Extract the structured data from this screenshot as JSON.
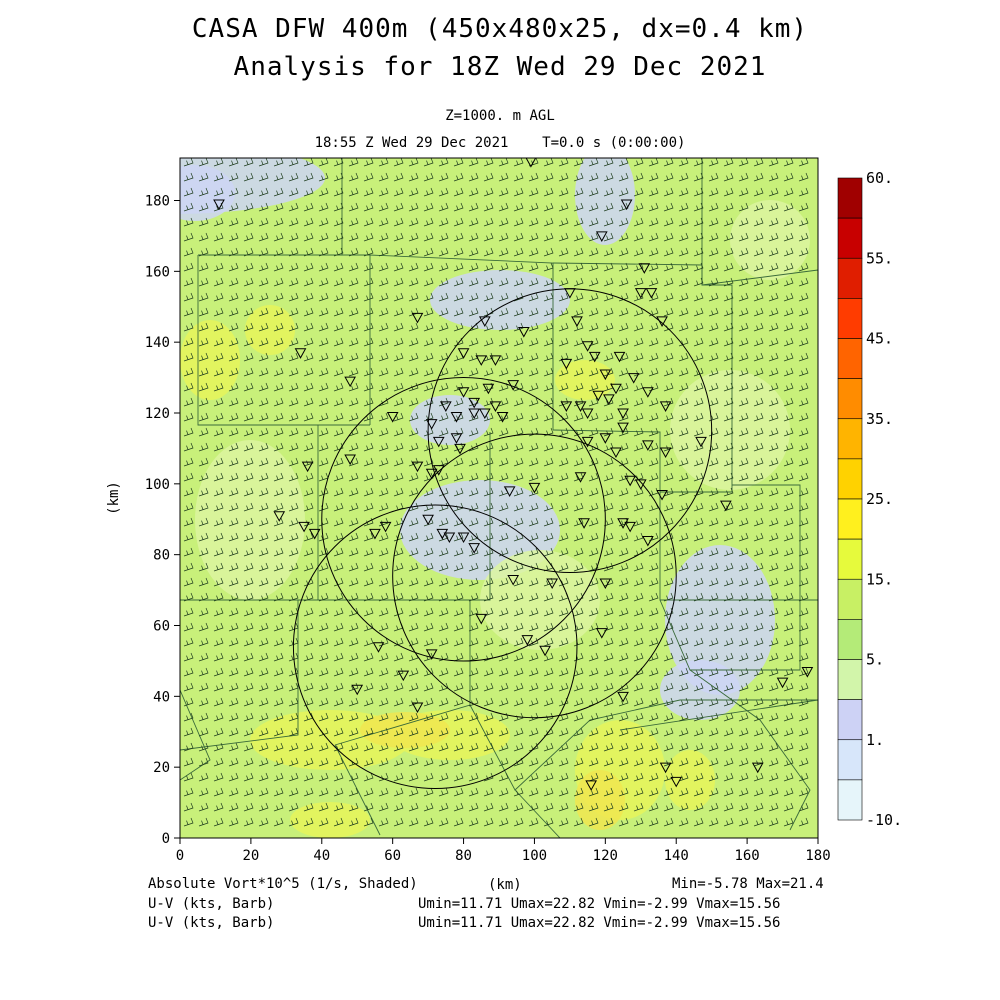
{
  "title_line1": "CASA DFW 400m (450x480x25, dx=0.4 km)",
  "title_line2": "Analysis for 18Z Wed 29 Dec 2021",
  "level_label": "Z=1000. m AGL",
  "time_label": "18:55 Z Wed 29 Dec 2021    T=0.0 s (0:00:00)",
  "footer": {
    "field_label": "Absolute Vort*10^5 (1/s, Shaded)",
    "axis_unit": "(km)",
    "minmax": "Min=-5.78 Max=21.4",
    "barb_label_1": "U-V (kts, Barb)",
    "barb_stats_1": "Umin=11.71 Umax=22.82 Vmin=-2.99 Vmax=15.56",
    "barb_label_2": "U-V (kts, Barb)",
    "barb_stats_2": "Umin=11.71 Umax=22.82 Vmin=-2.99 Vmax=15.56"
  },
  "colors": {
    "field_green": "#c8f07a",
    "field_light_green": "#dcf5a0",
    "field_yellow": "#e6f55a",
    "field_lavender": "#cdd5f5",
    "field_orange_yellow": "#f0e650"
  },
  "chart_data": {
    "type": "heatmap",
    "title": "CASA DFW 400m (450x480x25, dx=0.4 km)",
    "subtitle": "Analysis for 18Z Wed 29 Dec 2021",
    "xlabel": "(km)",
    "ylabel": "(km)",
    "xlim": [
      0,
      180
    ],
    "ylim": [
      0,
      192
    ],
    "x_ticks": [
      0,
      20,
      40,
      60,
      80,
      100,
      120,
      140,
      160,
      180
    ],
    "y_ticks": [
      0,
      20,
      40,
      60,
      80,
      100,
      120,
      140,
      160,
      180
    ],
    "colorbar": {
      "labels": [
        "60.",
        "55.",
        "45.",
        "35.",
        "25.",
        "15.",
        "5.",
        "1.",
        "-10."
      ],
      "colors": [
        "#a00000",
        "#c80000",
        "#e01e00",
        "#ff3c00",
        "#ff6400",
        "#ff8c00",
        "#ffb400",
        "#ffd200",
        "#fff01e",
        "#e6fa3c",
        "#c8f064",
        "#b4eb78",
        "#d2f5aa",
        "#cdd2f5",
        "#d7e6fa",
        "#e6f5fa"
      ]
    },
    "field_min": -5.78,
    "field_max": 21.4,
    "wind_u_range": [
      11.71,
      22.82
    ],
    "wind_v_range": [
      -2.99,
      15.56
    ],
    "radar_rings_km": [
      {
        "cx": 72,
        "cy": 54,
        "r": 40
      },
      {
        "cx": 100,
        "cy": 74,
        "r": 40
      },
      {
        "cx": 80,
        "cy": 90,
        "r": 40
      },
      {
        "cx": 110,
        "cy": 115,
        "r": 40
      }
    ],
    "stations_km": [
      [
        11,
        179
      ],
      [
        99,
        191
      ],
      [
        126,
        179
      ],
      [
        119,
        170
      ],
      [
        131,
        161
      ],
      [
        110,
        154
      ],
      [
        112,
        146
      ],
      [
        130,
        154
      ],
      [
        133,
        154
      ],
      [
        67,
        147
      ],
      [
        86,
        146
      ],
      [
        97,
        143
      ],
      [
        115,
        139
      ],
      [
        117,
        136
      ],
      [
        124,
        136
      ],
      [
        136,
        146
      ],
      [
        34,
        137
      ],
      [
        48,
        129
      ],
      [
        80,
        137
      ],
      [
        85,
        135
      ],
      [
        89,
        135
      ],
      [
        80,
        126
      ],
      [
        83,
        123
      ],
      [
        87,
        127
      ],
      [
        94,
        128
      ],
      [
        109,
        134
      ],
      [
        120,
        131
      ],
      [
        123,
        127
      ],
      [
        128,
        130
      ],
      [
        132,
        126
      ],
      [
        75,
        122
      ],
      [
        78,
        119
      ],
      [
        83,
        120
      ],
      [
        86,
        120
      ],
      [
        89,
        122
      ],
      [
        91,
        119
      ],
      [
        109,
        122
      ],
      [
        113,
        122
      ],
      [
        118,
        125
      ],
      [
        121,
        124
      ],
      [
        115,
        120
      ],
      [
        125,
        120
      ],
      [
        125,
        116
      ],
      [
        137,
        122
      ],
      [
        71,
        117
      ],
      [
        73,
        112
      ],
      [
        78,
        113
      ],
      [
        79,
        110
      ],
      [
        60,
        119
      ],
      [
        115,
        112
      ],
      [
        120,
        113
      ],
      [
        123,
        109
      ],
      [
        132,
        111
      ],
      [
        137,
        109
      ],
      [
        147,
        112
      ],
      [
        48,
        107
      ],
      [
        36,
        105
      ],
      [
        67,
        105
      ],
      [
        71,
        103
      ],
      [
        73,
        104
      ],
      [
        93,
        98
      ],
      [
        100,
        99
      ],
      [
        113,
        102
      ],
      [
        127,
        101
      ],
      [
        130,
        100
      ],
      [
        136,
        97
      ],
      [
        28,
        91
      ],
      [
        35,
        88
      ],
      [
        38,
        86
      ],
      [
        55,
        86
      ],
      [
        58,
        88
      ],
      [
        70,
        90
      ],
      [
        74,
        86
      ],
      [
        76,
        85
      ],
      [
        80,
        85
      ],
      [
        83,
        82
      ],
      [
        114,
        89
      ],
      [
        125,
        89
      ],
      [
        127,
        88
      ],
      [
        132,
        84
      ],
      [
        154,
        94
      ],
      [
        94,
        73
      ],
      [
        105,
        72
      ],
      [
        120,
        72
      ],
      [
        85,
        62
      ],
      [
        98,
        56
      ],
      [
        119,
        58
      ],
      [
        56,
        54
      ],
      [
        71,
        52
      ],
      [
        103,
        53
      ],
      [
        125,
        40
      ],
      [
        67,
        37
      ],
      [
        50,
        42
      ],
      [
        63,
        46
      ],
      [
        140,
        16
      ],
      [
        116,
        15
      ],
      [
        137,
        20
      ],
      [
        163,
        20
      ],
      [
        170,
        44
      ],
      [
        177,
        47
      ]
    ]
  }
}
